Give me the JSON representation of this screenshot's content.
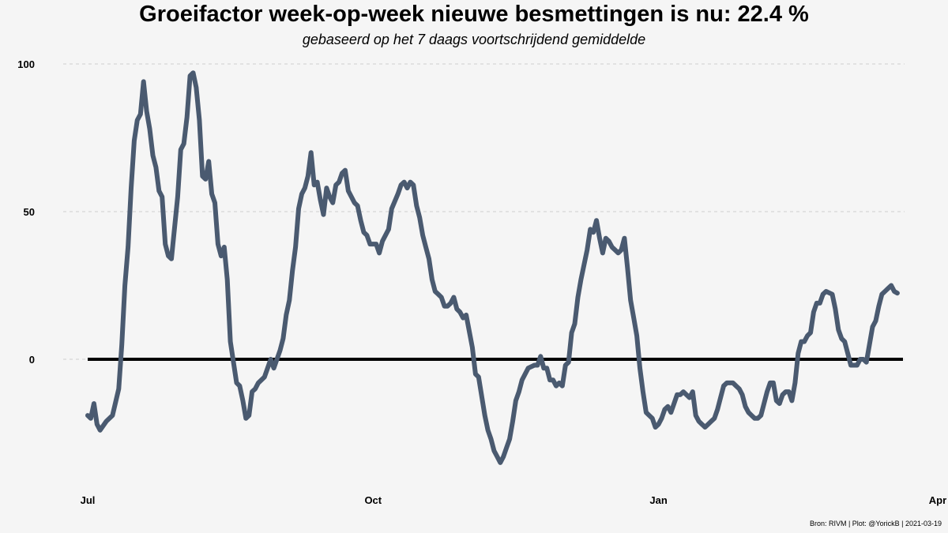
{
  "chart_data": {
    "type": "line",
    "title": "Groeifactor week-op-week nieuwe besmettingen is nu:  22.4 %",
    "subtitle": "gebaseerd op het 7 daags voortschrijdend gemiddelde",
    "caption": "Bron: RIVM | Plot: @YorickB |  2021-03-19",
    "xlabel": "",
    "ylabel": "",
    "x_ticks": [
      {
        "label": "Jul",
        "date": "2020-07-01"
      },
      {
        "label": "Oct",
        "date": "2020-10-01"
      },
      {
        "label": "Jan",
        "date": "2021-01-01"
      },
      {
        "label": "Apr",
        "date": "2021-04-01"
      }
    ],
    "y_ticks": [
      0,
      50,
      100
    ],
    "ylim": [
      -40,
      100
    ],
    "xlim": [
      "2020-07-01",
      "2021-04-01"
    ],
    "grid": "horizontal dashed",
    "reference_line": 0,
    "colors": {
      "line": "#4a5a70",
      "reference": "#000000",
      "grid": "#d0d0d0",
      "background": "#f5f5f5"
    },
    "series": [
      {
        "values": [
          [
            "2020-07-01",
            -19
          ],
          [
            "2020-07-02",
            -20
          ],
          [
            "2020-07-03",
            -15
          ],
          [
            "2020-07-04",
            -22
          ],
          [
            "2020-07-05",
            -24
          ],
          [
            "2020-07-07",
            -21
          ],
          [
            "2020-07-09",
            -19
          ],
          [
            "2020-07-11",
            -10
          ],
          [
            "2020-07-12",
            5
          ],
          [
            "2020-07-13",
            25
          ],
          [
            "2020-07-14",
            38
          ],
          [
            "2020-07-15",
            58
          ],
          [
            "2020-07-16",
            74
          ],
          [
            "2020-07-17",
            81
          ],
          [
            "2020-07-18",
            83
          ],
          [
            "2020-07-19",
            94
          ],
          [
            "2020-07-20",
            84
          ],
          [
            "2020-07-21",
            78
          ],
          [
            "2020-07-22",
            69
          ],
          [
            "2020-07-23",
            65
          ],
          [
            "2020-07-24",
            57
          ],
          [
            "2020-07-25",
            55
          ],
          [
            "2020-07-26",
            39
          ],
          [
            "2020-07-27",
            35
          ],
          [
            "2020-07-28",
            34
          ],
          [
            "2020-07-30",
            55
          ],
          [
            "2020-07-31",
            71
          ],
          [
            "2020-08-01",
            73
          ],
          [
            "2020-08-02",
            82
          ],
          [
            "2020-08-03",
            96
          ],
          [
            "2020-08-04",
            97
          ],
          [
            "2020-08-05",
            92
          ],
          [
            "2020-08-06",
            81
          ],
          [
            "2020-08-07",
            62
          ],
          [
            "2020-08-08",
            61
          ],
          [
            "2020-08-09",
            67
          ],
          [
            "2020-08-10",
            56
          ],
          [
            "2020-08-11",
            53
          ],
          [
            "2020-08-12",
            39
          ],
          [
            "2020-08-13",
            35
          ],
          [
            "2020-08-14",
            38
          ],
          [
            "2020-08-15",
            27
          ],
          [
            "2020-08-16",
            6
          ],
          [
            "2020-08-18",
            -8
          ],
          [
            "2020-08-19",
            -9
          ],
          [
            "2020-08-20",
            -14
          ],
          [
            "2020-08-21",
            -20
          ],
          [
            "2020-08-22",
            -19
          ],
          [
            "2020-08-23",
            -11
          ],
          [
            "2020-08-24",
            -10
          ],
          [
            "2020-08-25",
            -8
          ],
          [
            "2020-08-27",
            -6
          ],
          [
            "2020-08-29",
            0
          ],
          [
            "2020-08-30",
            -3
          ],
          [
            "2020-09-01",
            3
          ],
          [
            "2020-09-02",
            7
          ],
          [
            "2020-09-03",
            15
          ],
          [
            "2020-09-04",
            20
          ],
          [
            "2020-09-05",
            30
          ],
          [
            "2020-09-06",
            38
          ],
          [
            "2020-09-07",
            51
          ],
          [
            "2020-09-08",
            56
          ],
          [
            "2020-09-09",
            58
          ],
          [
            "2020-09-10",
            62
          ],
          [
            "2020-09-11",
            70
          ],
          [
            "2020-09-12",
            59
          ],
          [
            "2020-09-13",
            60
          ],
          [
            "2020-09-14",
            54
          ],
          [
            "2020-09-15",
            49
          ],
          [
            "2020-09-16",
            58
          ],
          [
            "2020-09-17",
            55
          ],
          [
            "2020-09-18",
            53
          ],
          [
            "2020-09-19",
            59
          ],
          [
            "2020-09-20",
            60
          ],
          [
            "2020-09-21",
            63
          ],
          [
            "2020-09-22",
            64
          ],
          [
            "2020-09-23",
            57
          ],
          [
            "2020-09-24",
            55
          ],
          [
            "2020-09-25",
            53
          ],
          [
            "2020-09-26",
            52
          ],
          [
            "2020-09-27",
            47
          ],
          [
            "2020-09-28",
            43
          ],
          [
            "2020-09-29",
            42
          ],
          [
            "2020-09-30",
            39
          ],
          [
            "2020-10-02",
            39
          ],
          [
            "2020-10-03",
            36
          ],
          [
            "2020-10-04",
            40
          ],
          [
            "2020-10-06",
            44
          ],
          [
            "2020-10-07",
            51
          ],
          [
            "2020-10-09",
            56
          ],
          [
            "2020-10-10",
            59
          ],
          [
            "2020-10-11",
            60
          ],
          [
            "2020-10-12",
            58
          ],
          [
            "2020-10-13",
            60
          ],
          [
            "2020-10-14",
            59
          ],
          [
            "2020-10-15",
            52
          ],
          [
            "2020-10-16",
            48
          ],
          [
            "2020-10-17",
            42
          ],
          [
            "2020-10-18",
            38
          ],
          [
            "2020-10-19",
            34
          ],
          [
            "2020-10-20",
            27
          ],
          [
            "2020-10-21",
            23
          ],
          [
            "2020-10-22",
            22
          ],
          [
            "2020-10-23",
            21
          ],
          [
            "2020-10-24",
            18
          ],
          [
            "2020-10-25",
            18
          ],
          [
            "2020-10-26",
            19
          ],
          [
            "2020-10-27",
            21
          ],
          [
            "2020-10-28",
            17
          ],
          [
            "2020-10-29",
            16
          ],
          [
            "2020-10-30",
            14
          ],
          [
            "2020-10-31",
            15
          ],
          [
            "2020-11-02",
            4
          ],
          [
            "2020-11-03",
            -5
          ],
          [
            "2020-11-04",
            -6
          ],
          [
            "2020-11-06",
            -19
          ],
          [
            "2020-11-07",
            -24
          ],
          [
            "2020-11-08",
            -27
          ],
          [
            "2020-11-09",
            -31
          ],
          [
            "2020-11-10",
            -33
          ],
          [
            "2020-11-11",
            -35
          ],
          [
            "2020-11-12",
            -33
          ],
          [
            "2020-11-13",
            -30
          ],
          [
            "2020-11-14",
            -27
          ],
          [
            "2020-11-15",
            -21
          ],
          [
            "2020-11-16",
            -14
          ],
          [
            "2020-11-17",
            -11
          ],
          [
            "2020-11-18",
            -7
          ],
          [
            "2020-11-19",
            -5
          ],
          [
            "2020-11-20",
            -3
          ],
          [
            "2020-11-22",
            -2
          ],
          [
            "2020-11-23",
            -2
          ],
          [
            "2020-11-24",
            1
          ],
          [
            "2020-11-25",
            -3
          ],
          [
            "2020-11-26",
            -3
          ],
          [
            "2020-11-27",
            -7
          ],
          [
            "2020-11-28",
            -7
          ],
          [
            "2020-11-29",
            -9
          ],
          [
            "2020-11-30",
            -8
          ],
          [
            "2020-12-01",
            -9
          ],
          [
            "2020-12-02",
            -2
          ],
          [
            "2020-12-03",
            -1
          ],
          [
            "2020-12-04",
            9
          ],
          [
            "2020-12-05",
            12
          ],
          [
            "2020-12-06",
            21
          ],
          [
            "2020-12-07",
            27
          ],
          [
            "2020-12-08",
            32
          ],
          [
            "2020-12-09",
            37
          ],
          [
            "2020-12-10",
            44
          ],
          [
            "2020-12-11",
            43
          ],
          [
            "2020-12-12",
            47
          ],
          [
            "2020-12-13",
            41
          ],
          [
            "2020-12-14",
            36
          ],
          [
            "2020-12-15",
            41
          ],
          [
            "2020-12-16",
            40
          ],
          [
            "2020-12-17",
            38
          ],
          [
            "2020-12-18",
            37
          ],
          [
            "2020-12-19",
            36
          ],
          [
            "2020-12-20",
            37
          ],
          [
            "2020-12-21",
            41
          ],
          [
            "2020-12-22",
            31
          ],
          [
            "2020-12-23",
            20
          ],
          [
            "2020-12-24",
            14
          ],
          [
            "2020-12-25",
            8
          ],
          [
            "2020-12-26",
            -3
          ],
          [
            "2020-12-27",
            -11
          ],
          [
            "2020-12-28",
            -18
          ],
          [
            "2020-12-29",
            -19
          ],
          [
            "2020-12-30",
            -20
          ],
          [
            "2020-12-31",
            -23
          ],
          [
            "2021-01-01",
            -22
          ],
          [
            "2021-01-02",
            -20
          ],
          [
            "2021-01-03",
            -17
          ],
          [
            "2021-01-04",
            -16
          ],
          [
            "2021-01-05",
            -18
          ],
          [
            "2021-01-06",
            -15
          ],
          [
            "2021-01-07",
            -12
          ],
          [
            "2021-01-08",
            -12
          ],
          [
            "2021-01-09",
            -11
          ],
          [
            "2021-01-10",
            -12
          ],
          [
            "2021-01-11",
            -13
          ],
          [
            "2021-01-12",
            -11
          ],
          [
            "2021-01-13",
            -19
          ],
          [
            "2021-01-14",
            -21
          ],
          [
            "2021-01-15",
            -22
          ],
          [
            "2021-01-16",
            -23
          ],
          [
            "2021-01-17",
            -22
          ],
          [
            "2021-01-18",
            -21
          ],
          [
            "2021-01-19",
            -20
          ],
          [
            "2021-01-20",
            -17
          ],
          [
            "2021-01-21",
            -13
          ],
          [
            "2021-01-22",
            -9
          ],
          [
            "2021-01-23",
            -8
          ],
          [
            "2021-01-24",
            -8
          ],
          [
            "2021-01-25",
            -8
          ],
          [
            "2021-01-26",
            -9
          ],
          [
            "2021-01-27",
            -10
          ],
          [
            "2021-01-28",
            -12
          ],
          [
            "2021-01-29",
            -16
          ],
          [
            "2021-01-30",
            -18
          ],
          [
            "2021-01-31",
            -19
          ],
          [
            "2021-02-01",
            -20
          ],
          [
            "2021-02-02",
            -20
          ],
          [
            "2021-02-03",
            -19
          ],
          [
            "2021-02-04",
            -15
          ],
          [
            "2021-02-05",
            -11
          ],
          [
            "2021-02-06",
            -8
          ],
          [
            "2021-02-07",
            -8
          ],
          [
            "2021-02-08",
            -14
          ],
          [
            "2021-02-09",
            -15
          ],
          [
            "2021-02-10",
            -12
          ],
          [
            "2021-02-11",
            -11
          ],
          [
            "2021-02-12",
            -11
          ],
          [
            "2021-02-13",
            -14
          ],
          [
            "2021-02-14",
            -8
          ],
          [
            "2021-02-15",
            2
          ],
          [
            "2021-02-16",
            6
          ],
          [
            "2021-02-17",
            6
          ],
          [
            "2021-02-18",
            8
          ],
          [
            "2021-02-19",
            9
          ],
          [
            "2021-02-20",
            16
          ],
          [
            "2021-02-21",
            19
          ],
          [
            "2021-02-22",
            19
          ],
          [
            "2021-02-23",
            22
          ],
          [
            "2021-02-24",
            23
          ],
          [
            "2021-02-26",
            22
          ],
          [
            "2021-02-27",
            17
          ],
          [
            "2021-02-28",
            10
          ],
          [
            "2021-03-01",
            7
          ],
          [
            "2021-03-02",
            6
          ],
          [
            "2021-03-03",
            2
          ],
          [
            "2021-03-04",
            -2
          ],
          [
            "2021-03-05",
            -2
          ],
          [
            "2021-03-06",
            -2
          ],
          [
            "2021-03-07",
            0
          ],
          [
            "2021-03-08",
            0
          ],
          [
            "2021-03-09",
            -1
          ],
          [
            "2021-03-10",
            5
          ],
          [
            "2021-03-11",
            11
          ],
          [
            "2021-03-12",
            13
          ],
          [
            "2021-03-13",
            18
          ],
          [
            "2021-03-14",
            22
          ],
          [
            "2021-03-15",
            23
          ],
          [
            "2021-03-16",
            24
          ],
          [
            "2021-03-17",
            25
          ],
          [
            "2021-03-18",
            23
          ],
          [
            "2021-03-19",
            22.4
          ]
        ]
      }
    ]
  }
}
